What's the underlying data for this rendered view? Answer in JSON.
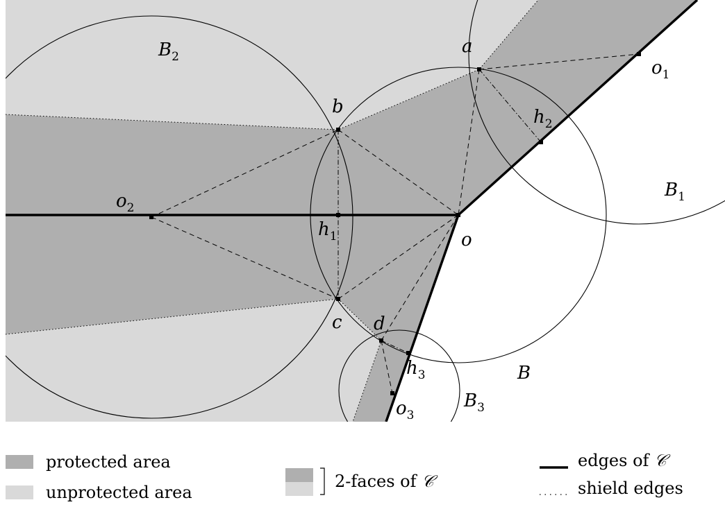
{
  "colors": {
    "protected": "#afafaf",
    "unprotected": "#d9d9d9",
    "line": "#000000",
    "background": "#ffffff"
  },
  "labels": {
    "B": "B",
    "B1": {
      "base": "B",
      "sub": "1"
    },
    "B2": {
      "base": "B",
      "sub": "2"
    },
    "B3": {
      "base": "B",
      "sub": "3"
    },
    "a": "a",
    "b": "b",
    "c": "c",
    "d": "d",
    "o": "o",
    "o1": {
      "base": "o",
      "sub": "1"
    },
    "o2": {
      "base": "o",
      "sub": "2"
    },
    "o3": {
      "base": "o",
      "sub": "3"
    },
    "h1": {
      "base": "h",
      "sub": "1"
    },
    "h2": {
      "base": "h",
      "sub": "2"
    },
    "h3": {
      "base": "h",
      "sub": "3"
    }
  },
  "legend": {
    "protected_area": "protected area",
    "unprotected_area": "unprotected area",
    "two_faces": "2-faces of",
    "edges": "edges of",
    "shield_edges": "shield edges",
    "complex_symbol": "𝒞"
  }
}
